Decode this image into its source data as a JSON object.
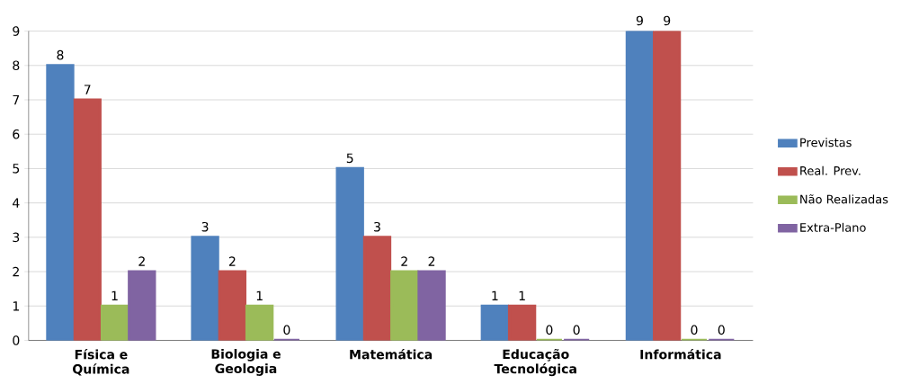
{
  "chart_data": {
    "type": "bar",
    "categories": [
      "Física e Química",
      "Biologia e Geologia",
      "Matemática",
      "Educação Tecnológica",
      "Informática"
    ],
    "series": [
      {
        "name": "Previstas",
        "color": "#4f81bd",
        "values": [
          8,
          3,
          5,
          1,
          9
        ]
      },
      {
        "name": "Real. Prev.",
        "color": "#c0504d",
        "values": [
          7,
          2,
          3,
          1,
          9
        ]
      },
      {
        "name": "Não Realizadas",
        "color": "#9bbb59",
        "values": [
          1,
          1,
          2,
          0,
          0
        ]
      },
      {
        "name": "Extra-Plano",
        "color": "#8064a2",
        "values": [
          2,
          0,
          2,
          0,
          0
        ]
      }
    ],
    "ylim": [
      0,
      9
    ],
    "yticks": [
      0,
      1,
      2,
      3,
      4,
      5,
      6,
      7,
      8,
      9
    ],
    "grid": "y",
    "legend": "right",
    "data_labels": true
  }
}
